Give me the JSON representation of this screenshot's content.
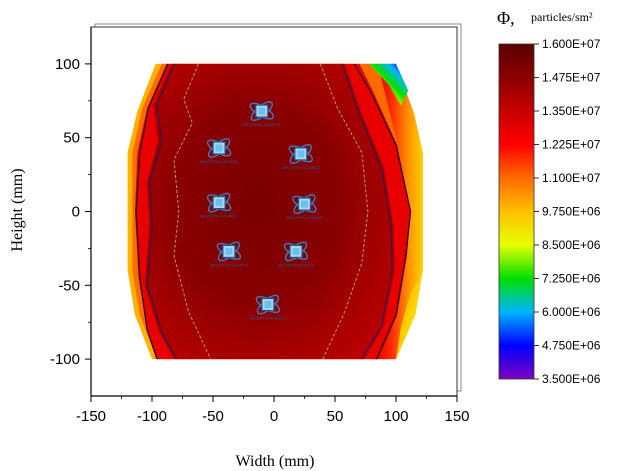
{
  "chart_data": {
    "type": "heatmap",
    "title": "",
    "xlabel": "Width (mm)",
    "ylabel": "Height (mm)",
    "xlim": [
      -150,
      150
    ],
    "ylim": [
      -125,
      125
    ],
    "x_ticks": [
      "-150",
      "-100",
      "-50",
      "0",
      "50",
      "100",
      "150"
    ],
    "y_ticks": [
      "100",
      "50",
      "0",
      "-50",
      "-100"
    ],
    "colorbar": {
      "symbol": "Φ,",
      "unit": "particles/sm²",
      "min": 3500000,
      "max": 16000000,
      "labels": [
        "1.600E+07",
        "1.475E+07",
        "1.350E+07",
        "1.225E+07",
        "1.100E+07",
        "9.750E+06",
        "8.500E+06",
        "7.250E+06",
        "6.000E+06",
        "4.750E+06",
        "3.500E+06"
      ],
      "colors": [
        "#5a0000",
        "#8b0000",
        "#c80000",
        "#ff0000",
        "#ff6a00",
        "#ffc000",
        "#e6ff00",
        "#00e000",
        "#00b4ff",
        "#0000ff",
        "#8000c0"
      ]
    },
    "region_x": [
      -100,
      100
    ],
    "region_y": [
      -100,
      100
    ],
    "grid": false,
    "source_label": "NEUTRON SOURCE",
    "sources": [
      {
        "x": -10,
        "y": 68
      },
      {
        "x": -45,
        "y": 43
      },
      {
        "x": 22,
        "y": 39
      },
      {
        "x": -45,
        "y": 6
      },
      {
        "x": 25,
        "y": 5
      },
      {
        "x": -37,
        "y": -27
      },
      {
        "x": 18,
        "y": -27
      },
      {
        "x": -5,
        "y": -63
      }
    ],
    "contours": [
      {
        "level": 15300000,
        "color": "#c0a030",
        "points": [
          [
            -62,
            100
          ],
          [
            -74,
            76
          ],
          [
            -67,
            60
          ],
          [
            -82,
            35
          ],
          [
            -78,
            0
          ],
          [
            -82,
            -30
          ],
          [
            -70,
            -68
          ],
          [
            -52,
            -100
          ],
          [
            40,
            -100
          ],
          [
            57,
            -70
          ],
          [
            72,
            -35
          ],
          [
            77,
            0
          ],
          [
            72,
            40
          ],
          [
            52,
            70
          ],
          [
            38,
            100
          ]
        ]
      },
      {
        "level": 14000000,
        "color": "#2a1a50",
        "points": [
          [
            -82,
            100
          ],
          [
            -96,
            72
          ],
          [
            -92,
            48
          ],
          [
            -102,
            20
          ],
          [
            -100,
            -10
          ],
          [
            -104,
            -50
          ],
          [
            -92,
            -82
          ],
          [
            -80,
            -100
          ],
          [
            72,
            -100
          ],
          [
            88,
            -78
          ],
          [
            97,
            -40
          ],
          [
            96,
            -10
          ],
          [
            88,
            30
          ],
          [
            70,
            66
          ],
          [
            56,
            100
          ]
        ]
      },
      {
        "level": 13500000,
        "color": "#101010",
        "points": [
          [
            -87,
            100
          ],
          [
            -103,
            70
          ],
          [
            -110,
            40
          ],
          [
            -113,
            0
          ],
          [
            -110,
            -45
          ],
          [
            -104,
            -80
          ],
          [
            -96,
            -100
          ],
          [
            84,
            -100
          ],
          [
            100,
            -70
          ],
          [
            108,
            -30
          ],
          [
            112,
            0
          ],
          [
            100,
            45
          ],
          [
            80,
            80
          ],
          [
            66,
            100
          ]
        ]
      }
    ]
  }
}
